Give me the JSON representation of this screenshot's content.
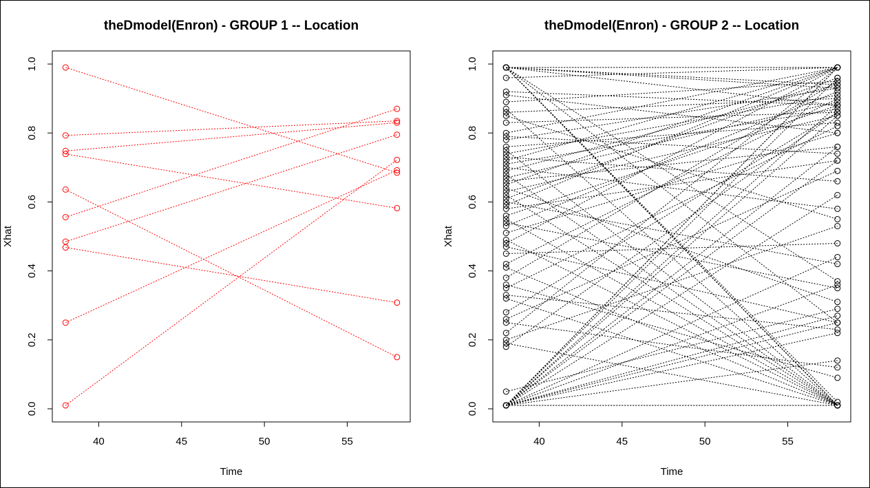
{
  "chart_data": [
    {
      "type": "line",
      "title": "theDmodel(Enron) - GROUP 1 -- Location",
      "xlabel": "Time",
      "ylabel": "Xhat",
      "xlim": [
        37.2,
        58.8
      ],
      "ylim": [
        -0.038,
        1.038
      ],
      "xticks": [
        "40",
        "45",
        "50",
        "55"
      ],
      "yticks": [
        "0.0",
        "0.2",
        "0.4",
        "0.6",
        "0.8",
        "1.0"
      ],
      "x": [
        38,
        58
      ],
      "color": "#ff0000",
      "line_style": "dotted",
      "marker": "open-circle",
      "series": [
        {
          "values": [
            0.99,
            0.685
          ]
        },
        {
          "values": [
            0.793,
            0.835
          ]
        },
        {
          "values": [
            0.748,
            0.83
          ]
        },
        {
          "values": [
            0.739,
            0.582
          ]
        },
        {
          "values": [
            0.636,
            0.15
          ]
        },
        {
          "values": [
            0.556,
            0.87
          ]
        },
        {
          "values": [
            0.485,
            0.795
          ]
        },
        {
          "values": [
            0.468,
            0.308
          ]
        },
        {
          "values": [
            0.25,
            0.692
          ]
        },
        {
          "values": [
            0.01,
            0.722
          ]
        }
      ]
    },
    {
      "type": "line",
      "title": "theDmodel(Enron) - GROUP 2 -- Location",
      "xlabel": "Time",
      "ylabel": "Xhat",
      "xlim": [
        37.2,
        58.8
      ],
      "ylim": [
        -0.038,
        1.038
      ],
      "xticks": [
        "40",
        "45",
        "50",
        "55"
      ],
      "yticks": [
        "0.0",
        "0.2",
        "0.4",
        "0.6",
        "0.8",
        "1.0"
      ],
      "x": [
        38,
        58
      ],
      "color": "#000000",
      "line_style": "dotted",
      "marker": "open-circle",
      "series": [
        {
          "values": [
            0.99,
            0.01
          ]
        },
        {
          "values": [
            0.99,
            0.01
          ]
        },
        {
          "values": [
            0.99,
            0.01
          ]
        },
        {
          "values": [
            0.99,
            0.01
          ]
        },
        {
          "values": [
            0.99,
            0.99
          ]
        },
        {
          "values": [
            0.99,
            0.93
          ]
        },
        {
          "values": [
            0.99,
            0.88
          ]
        },
        {
          "values": [
            0.99,
            0.01
          ]
        },
        {
          "values": [
            0.99,
            0.94
          ]
        },
        {
          "values": [
            0.99,
            0.02
          ]
        },
        {
          "values": [
            0.99,
            0.25
          ]
        },
        {
          "values": [
            0.99,
            0.37
          ]
        },
        {
          "values": [
            0.99,
            0.01
          ]
        },
        {
          "values": [
            0.99,
            0.99
          ]
        },
        {
          "values": [
            0.01,
            0.99
          ]
        },
        {
          "values": [
            0.01,
            0.99
          ]
        },
        {
          "values": [
            0.01,
            0.88
          ]
        },
        {
          "values": [
            0.01,
            0.01
          ]
        },
        {
          "values": [
            0.01,
            0.01
          ]
        },
        {
          "values": [
            0.01,
            0.25
          ]
        },
        {
          "values": [
            0.01,
            0.27
          ]
        },
        {
          "values": [
            0.01,
            0.22
          ]
        },
        {
          "values": [
            0.01,
            0.76
          ]
        },
        {
          "values": [
            0.01,
            0.62
          ]
        },
        {
          "values": [
            0.01,
            0.72
          ]
        },
        {
          "values": [
            0.01,
            0.96
          ]
        },
        {
          "values": [
            0.01,
            0.01
          ]
        },
        {
          "values": [
            0.01,
            0.85
          ]
        },
        {
          "values": [
            0.01,
            0.44
          ]
        },
        {
          "values": [
            0.01,
            0.14
          ]
        },
        {
          "values": [
            0.01,
            0.36
          ]
        },
        {
          "values": [
            0.01,
            0.99
          ]
        },
        {
          "values": [
            0.05,
            0.29
          ]
        },
        {
          "values": [
            0.18,
            0.86
          ]
        },
        {
          "values": [
            0.19,
            0.01
          ]
        },
        {
          "values": [
            0.2,
            0.53
          ]
        },
        {
          "values": [
            0.22,
            0.99
          ]
        },
        {
          "values": [
            0.25,
            0.12
          ]
        },
        {
          "values": [
            0.26,
            0.69
          ]
        },
        {
          "values": [
            0.28,
            0.86
          ]
        },
        {
          "values": [
            0.32,
            0.01
          ]
        },
        {
          "values": [
            0.33,
            0.23
          ]
        },
        {
          "values": [
            0.35,
            0.82
          ]
        },
        {
          "values": [
            0.36,
            0.09
          ]
        },
        {
          "values": [
            0.38,
            0.95
          ]
        },
        {
          "values": [
            0.41,
            0.01
          ]
        },
        {
          "values": [
            0.42,
            0.9
          ]
        },
        {
          "values": [
            0.45,
            0.48
          ]
        },
        {
          "values": [
            0.47,
            0.25
          ]
        },
        {
          "values": [
            0.48,
            0.99
          ]
        },
        {
          "values": [
            0.49,
            0.01
          ]
        },
        {
          "values": [
            0.51,
            0.8
          ]
        },
        {
          "values": [
            0.53,
            0.92
          ]
        },
        {
          "values": [
            0.54,
            0.35
          ]
        },
        {
          "values": [
            0.55,
            0.01
          ]
        },
        {
          "values": [
            0.56,
            0.88
          ]
        },
        {
          "values": [
            0.58,
            0.72
          ]
        },
        {
          "values": [
            0.59,
            0.99
          ]
        },
        {
          "values": [
            0.6,
            0.42
          ]
        },
        {
          "values": [
            0.61,
            0.96
          ]
        },
        {
          "values": [
            0.62,
            0.01
          ]
        },
        {
          "values": [
            0.63,
            0.85
          ]
        },
        {
          "values": [
            0.64,
            0.31
          ]
        },
        {
          "values": [
            0.65,
            0.99
          ]
        },
        {
          "values": [
            0.66,
            0.76
          ]
        },
        {
          "values": [
            0.67,
            0.89
          ]
        },
        {
          "values": [
            0.68,
            0.01
          ]
        },
        {
          "values": [
            0.69,
            0.94
          ]
        },
        {
          "values": [
            0.7,
            0.58
          ]
        },
        {
          "values": [
            0.71,
            0.87
          ]
        },
        {
          "values": [
            0.72,
            0.99
          ]
        },
        {
          "values": [
            0.73,
            0.66
          ]
        },
        {
          "values": [
            0.74,
            0.91
          ]
        },
        {
          "values": [
            0.75,
            0.01
          ]
        },
        {
          "values": [
            0.76,
            0.83
          ]
        },
        {
          "values": [
            0.78,
            0.93
          ]
        },
        {
          "values": [
            0.79,
            0.74
          ]
        },
        {
          "values": [
            0.8,
            0.99
          ]
        },
        {
          "values": [
            0.83,
            0.86
          ]
        },
        {
          "values": [
            0.85,
            0.55
          ]
        },
        {
          "values": [
            0.86,
            0.9
          ]
        },
        {
          "values": [
            0.87,
            0.01
          ]
        },
        {
          "values": [
            0.89,
            0.95
          ]
        },
        {
          "values": [
            0.91,
            0.8
          ]
        },
        {
          "values": [
            0.92,
            0.88
          ]
        },
        {
          "values": [
            0.96,
            0.99
          ]
        }
      ]
    }
  ]
}
